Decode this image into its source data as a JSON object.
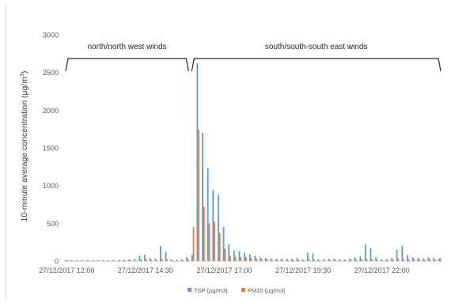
{
  "chart_data": {
    "type": "bar",
    "ylabel": "10-minute average concentration (µg/m",
    "ylabel_sup": "3",
    "ylabel_end": ")",
    "ylim": [
      0,
      3000
    ],
    "yticks": [
      0,
      500,
      1000,
      1500,
      2000,
      2500,
      3000
    ],
    "grid": false,
    "legend_position": "bottom",
    "x_labels": [
      {
        "index": 0,
        "label": "27/12/2017 12:00"
      },
      {
        "index": 15,
        "label": "27/12/2017 14:30"
      },
      {
        "index": 30,
        "label": "27/12/2017 17:00"
      },
      {
        "index": 45,
        "label": "27/12/2017 19:30"
      },
      {
        "index": 60,
        "label": "27/12/2017 22:00"
      }
    ],
    "annotations": [
      {
        "text": "north/north west winds",
        "from_index": 0,
        "to_index": 23
      },
      {
        "text": "south/south-south east winds",
        "from_index": 24,
        "to_index": 71
      }
    ],
    "series": [
      {
        "name": "TSP (µg/m3)",
        "color": "#5b9bd5",
        "values": [
          15,
          12,
          10,
          10,
          12,
          8,
          10,
          12,
          10,
          10,
          15,
          15,
          20,
          25,
          70,
          80,
          40,
          30,
          200,
          120,
          20,
          15,
          20,
          50,
          80,
          2620,
          1700,
          1230,
          940,
          870,
          450,
          220,
          140,
          130,
          110,
          90,
          70,
          50,
          40,
          30,
          25,
          30,
          25,
          30,
          40,
          20,
          110,
          100,
          20,
          20,
          30,
          30,
          20,
          20,
          30,
          50,
          60,
          220,
          170,
          50,
          20,
          20,
          40,
          150,
          200,
          80,
          50,
          40,
          30,
          50,
          40,
          30
        ]
      },
      {
        "name": "PM10 (µg/m3)",
        "color": "#ed7d31",
        "values": [
          8,
          6,
          5,
          5,
          6,
          5,
          5,
          6,
          5,
          5,
          8,
          8,
          10,
          12,
          20,
          25,
          15,
          15,
          25,
          20,
          10,
          8,
          10,
          20,
          450,
          1740,
          720,
          500,
          520,
          370,
          160,
          70,
          60,
          50,
          50,
          40,
          30,
          25,
          20,
          15,
          15,
          15,
          15,
          15,
          15,
          10,
          20,
          20,
          10,
          10,
          15,
          15,
          10,
          10,
          15,
          20,
          20,
          25,
          20,
          15,
          10,
          10,
          15,
          30,
          25,
          20,
          20,
          15,
          15,
          20,
          15,
          40
        ]
      }
    ]
  }
}
